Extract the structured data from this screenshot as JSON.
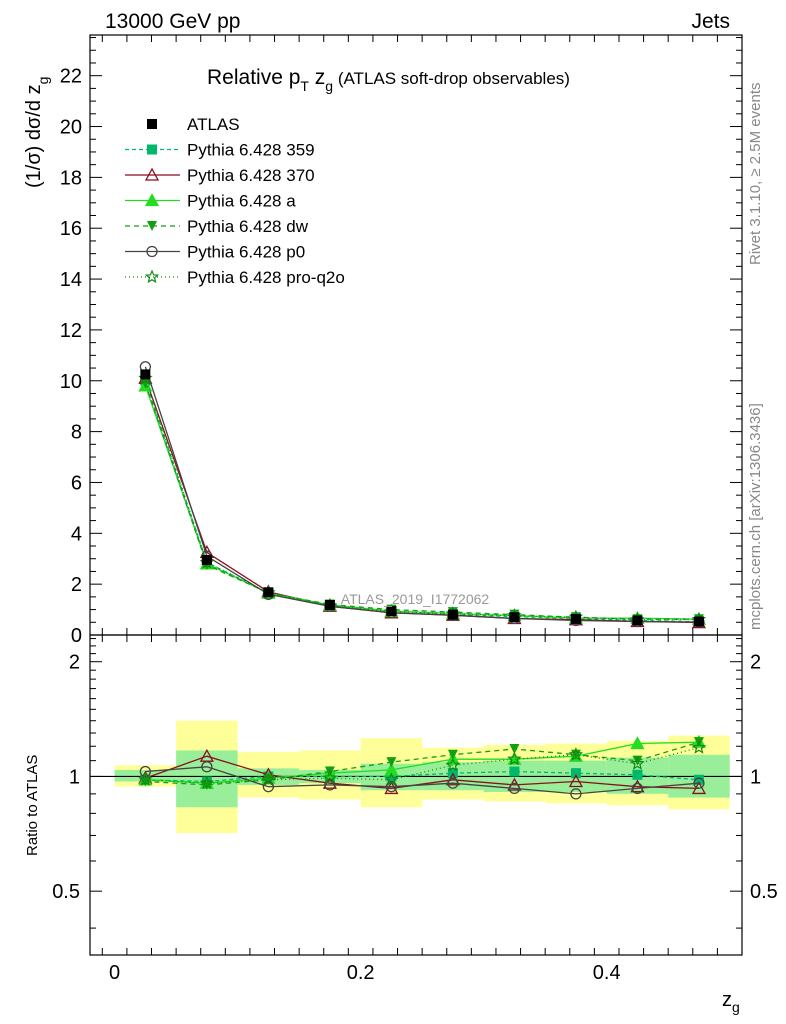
{
  "header": {
    "left": "13000 GeV pp",
    "right": "Jets"
  },
  "side": {
    "top": "Rivet 3.1.10, ≥ 2.5M events",
    "bottom": "mcplots.cern.ch [arXiv:1306.3436]"
  },
  "title": {
    "main": "Relative p",
    "sub_T": "T",
    "zg": " z",
    "sub_g": "g",
    "rest": " (ATLAS soft-drop observables)"
  },
  "watermark": "ATLAS_2019_I1772062",
  "axes": {
    "ylabel_main": "(1/σ) dσ/d z",
    "ylabel_sub": "g",
    "ylabel_ratio": "Ratio to ATLAS",
    "xlabel": "z",
    "xlabel_sub": "g"
  },
  "chart_data": {
    "type": "line",
    "x": [
      0.025,
      0.075,
      0.125,
      0.175,
      0.225,
      0.275,
      0.325,
      0.375,
      0.425,
      0.475
    ],
    "bin_edges": [
      0.0,
      0.05,
      0.1,
      0.15,
      0.2,
      0.25,
      0.3,
      0.35,
      0.4,
      0.45,
      0.5
    ],
    "xlim": [
      -0.02,
      0.51
    ],
    "ylim_main": [
      0,
      23.6
    ],
    "ylim_ratio": [
      0.34,
      2.35
    ],
    "xticks": [
      "0",
      "0.2",
      "0.4"
    ],
    "yticks_main": [
      "0",
      "2",
      "4",
      "6",
      "8",
      "10",
      "12",
      "14",
      "16",
      "18",
      "20",
      "22"
    ],
    "yticks_ratio": [
      "0.5",
      "1",
      "2"
    ],
    "data": {
      "name": "ATLAS",
      "values": [
        10.25,
        2.95,
        1.68,
        1.18,
        0.94,
        0.8,
        0.7,
        0.63,
        0.57,
        0.53
      ],
      "band_inner": [
        [
          0.97,
          1.04
        ],
        [
          0.83,
          1.17
        ],
        [
          0.95,
          1.05
        ],
        [
          0.96,
          1.04
        ],
        [
          0.92,
          1.08
        ],
        [
          0.92,
          1.09
        ],
        [
          0.91,
          1.1
        ],
        [
          0.91,
          1.1
        ],
        [
          0.9,
          1.12
        ],
        [
          0.88,
          1.14
        ]
      ],
      "band_outer": [
        [
          0.94,
          1.07
        ],
        [
          0.71,
          1.4
        ],
        [
          0.88,
          1.16
        ],
        [
          0.87,
          1.17
        ],
        [
          0.83,
          1.26
        ],
        [
          0.87,
          1.19
        ],
        [
          0.86,
          1.21
        ],
        [
          0.85,
          1.22
        ],
        [
          0.84,
          1.24
        ],
        [
          0.82,
          1.28
        ]
      ]
    },
    "series": [
      {
        "name": "Pythia 6.428 359",
        "color": "#00b86b",
        "dash": "4,3",
        "marker": "square",
        "values": [
          10.0,
          2.85,
          1.66,
          1.18,
          0.94,
          0.82,
          0.72,
          0.65,
          0.58,
          0.52
        ],
        "ratio": [
          0.98,
          0.97,
          1.0,
          1.0,
          1.0,
          1.02,
          1.03,
          1.02,
          1.01,
          0.98
        ]
      },
      {
        "name": "Pythia 6.428 370",
        "color": "#8b0f1e",
        "dash": "",
        "marker": "triangle-open",
        "values": [
          10.1,
          3.25,
          1.7,
          1.13,
          0.87,
          0.78,
          0.65,
          0.6,
          0.53,
          0.49
        ],
        "ratio": [
          0.99,
          1.13,
          1.01,
          0.96,
          0.93,
          0.98,
          0.95,
          0.97,
          0.94,
          0.93
        ]
      },
      {
        "name": "Pythia 6.428 a",
        "color": "#22dd22",
        "dash": "",
        "marker": "triangle",
        "values": [
          9.8,
          2.8,
          1.65,
          1.18,
          0.94,
          0.85,
          0.76,
          0.67,
          0.66,
          0.62
        ],
        "ratio": [
          0.98,
          0.96,
          0.99,
          1.02,
          1.04,
          1.11,
          1.11,
          1.13,
          1.22,
          1.23
        ]
      },
      {
        "name": "Pythia 6.428 dw",
        "color": "#11a011",
        "dash": "5,4",
        "marker": "triangle-down",
        "values": [
          9.9,
          2.75,
          1.66,
          1.2,
          1.0,
          0.9,
          0.8,
          0.7,
          0.62,
          0.62
        ],
        "ratio": [
          0.97,
          0.95,
          0.98,
          1.03,
          1.09,
          1.14,
          1.18,
          1.14,
          1.1,
          1.23
        ]
      },
      {
        "name": "Pythia 6.428 p0",
        "color": "#444444",
        "dash": "",
        "marker": "circle-open",
        "values": [
          10.55,
          3.1,
          1.6,
          1.13,
          0.88,
          0.77,
          0.65,
          0.57,
          0.53,
          0.51
        ],
        "ratio": [
          1.03,
          1.06,
          0.94,
          0.95,
          0.94,
          0.96,
          0.93,
          0.9,
          0.93,
          0.96
        ]
      },
      {
        "name": "Pythia 6.428 pro-q2o",
        "color": "#118811",
        "dash": "1,3",
        "marker": "star",
        "values": [
          10.1,
          2.85,
          1.66,
          1.16,
          0.92,
          0.83,
          0.76,
          0.7,
          0.6,
          0.61
        ],
        "ratio": [
          0.98,
          0.96,
          0.98,
          0.99,
          0.98,
          1.07,
          1.11,
          1.14,
          1.08,
          1.19
        ]
      }
    ]
  }
}
